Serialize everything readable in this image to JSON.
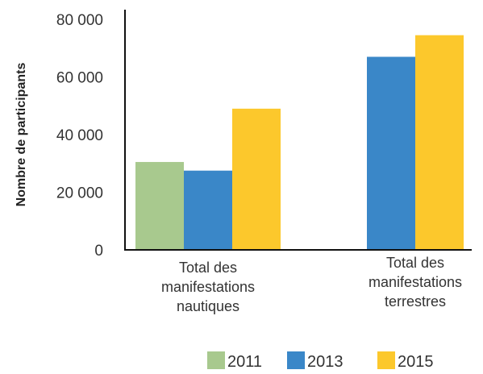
{
  "chart_data": {
    "type": "bar",
    "ylabel": "Nombre de participants",
    "xlabel": "",
    "ylim": [
      0,
      80000
    ],
    "yticks": [
      {
        "value": 0,
        "label": "0"
      },
      {
        "value": 20000,
        "label": "20 000"
      },
      {
        "value": 40000,
        "label": "40 000"
      },
      {
        "value": 60000,
        "label": "60 000"
      },
      {
        "value": 80000,
        "label": "80 000"
      }
    ],
    "categories": [
      [
        "Total des",
        "manifestations",
        "nautiques"
      ],
      [
        "Total des",
        "manifestations",
        "terrestres"
      ]
    ],
    "series": [
      {
        "name": "2011",
        "color": "#a8c98e",
        "values": [
          30500,
          null
        ]
      },
      {
        "name": "2013",
        "color": "#3a87c8",
        "values": [
          27500,
          67000
        ]
      },
      {
        "name": "2015",
        "color": "#fcc82c",
        "values": [
          49000,
          74500
        ]
      }
    ],
    "grid": false,
    "legend_position": "bottom-right"
  }
}
